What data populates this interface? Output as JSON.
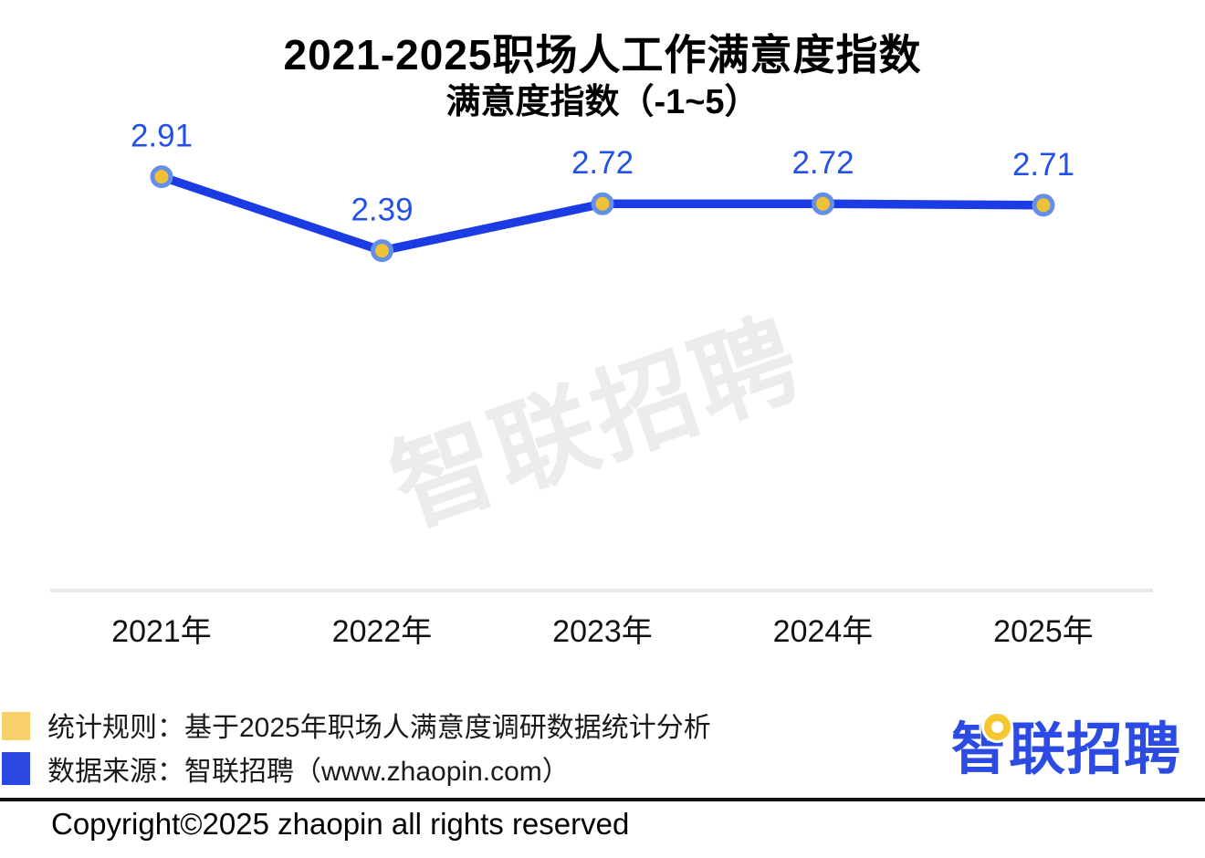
{
  "title": "2021-2025职场人工作满意度指数",
  "subtitle": "满意度指数（-1~5）",
  "watermark": {
    "text": "智联招聘"
  },
  "chart_data": {
    "type": "line",
    "categories": [
      "2021年",
      "2022年",
      "2023年",
      "2024年",
      "2025年"
    ],
    "values": [
      2.91,
      2.39,
      2.72,
      2.72,
      2.71
    ],
    "value_labels": [
      "2.91",
      "2.39",
      "2.72",
      "2.72",
      "2.71"
    ],
    "title": "2021-2025职场人工作满意度指数",
    "subtitle": "满意度指数（-1~5）",
    "xlabel": "",
    "ylabel": "满意度指数",
    "ylim": [
      -1,
      5
    ],
    "baseline_value": 0,
    "grid": false,
    "legend_position": "none",
    "colors": {
      "line": "#1b3be4",
      "marker_fill": "#efc139",
      "marker_ring": "#648fe8",
      "drop_line_top": "#efc139",
      "drop_line_bottom": "#fdf3d6",
      "value_label": "#2451e5",
      "tick_label": "#111111",
      "axis_line": "#e9e9e9"
    }
  },
  "notes": [
    {
      "swatch_color": "#f8d06a",
      "text": "统计规则：基于2025年职场人满意度调研数据统计分析"
    },
    {
      "swatch_color": "#2a47e0",
      "text": "数据来源：智联招聘（www.zhaopin.com）"
    }
  ],
  "logo": {
    "text": "智联招聘",
    "color": "#2b4be3",
    "pin_color": "#f6c72e"
  },
  "footer": {
    "copyright": "Copyright©2025 zhaopin all rights reserved"
  }
}
